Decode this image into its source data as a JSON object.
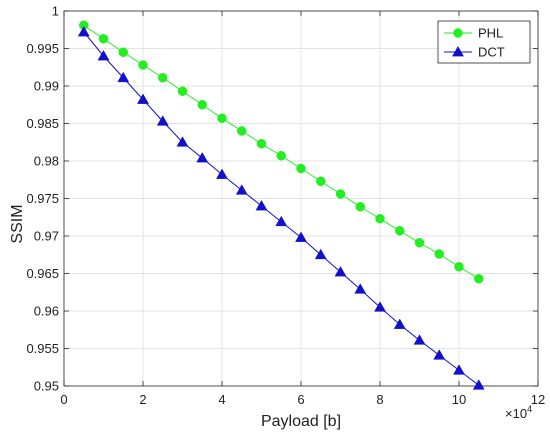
{
  "chart_data": {
    "type": "line",
    "title": "",
    "xlabel": "Payload [b]",
    "ylabel": "SSIM",
    "x_exponent_label": "×10",
    "x_exponent_power": "4",
    "xlim": [
      0,
      12
    ],
    "ylim": [
      0.95,
      1.0
    ],
    "x_ticks": [
      0,
      2,
      4,
      6,
      8,
      10,
      12
    ],
    "x_tick_labels": [
      "0",
      "2",
      "4",
      "6",
      "8",
      "10",
      "12"
    ],
    "y_ticks": [
      0.95,
      0.955,
      0.96,
      0.965,
      0.97,
      0.975,
      0.98,
      0.985,
      0.99,
      0.995,
      1.0
    ],
    "y_tick_labels": [
      "0.95",
      "0.955",
      "0.96",
      "0.965",
      "0.97",
      "0.975",
      "0.98",
      "0.985",
      "0.99",
      "0.995",
      "1"
    ],
    "grid": true,
    "legend_position": "top-right",
    "x": [
      0.5,
      1.0,
      1.5,
      2.0,
      2.5,
      3.0,
      3.5,
      4.0,
      4.5,
      5.0,
      5.5,
      6.0,
      6.5,
      7.0,
      7.5,
      8.0,
      8.5,
      9.0,
      9.5,
      10.0,
      10.5
    ],
    "series": [
      {
        "name": "PHL",
        "color": "#22ee22",
        "marker": "circle",
        "values": [
          0.9981,
          0.9963,
          0.9945,
          0.9928,
          0.9911,
          0.9893,
          0.9875,
          0.9857,
          0.984,
          0.9823,
          0.9807,
          0.979,
          0.9773,
          0.9756,
          0.9739,
          0.9723,
          0.9707,
          0.9691,
          0.9676,
          0.9659,
          0.9643
        ]
      },
      {
        "name": "DCT",
        "color": "#1111cc",
        "marker": "triangle",
        "values": [
          0.9972,
          0.994,
          0.9911,
          0.9882,
          0.9853,
          0.9825,
          0.9804,
          0.9782,
          0.9761,
          0.974,
          0.9719,
          0.9698,
          0.9675,
          0.9652,
          0.9629,
          0.9605,
          0.9582,
          0.9561,
          0.9541,
          0.9521,
          0.9501
        ]
      }
    ]
  }
}
